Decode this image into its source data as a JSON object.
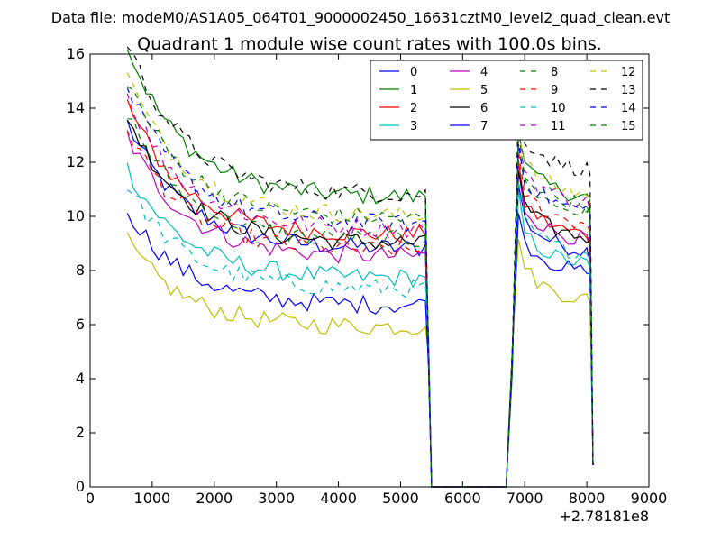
{
  "suptitle": "Data file: modeM0/AS1A05_064T01_9000002450_16631cztM0_level2_quad_clean.evt",
  "chart_data": {
    "type": "line",
    "title": "Quadrant 1 module wise count rates with 100.0s bins.",
    "xlabel": "",
    "ylabel": "",
    "x_offset_label": "+2.78181e8",
    "xlim": [
      0,
      9000
    ],
    "ylim": [
      0,
      16
    ],
    "xticks": [
      0,
      1000,
      2000,
      3000,
      4000,
      5000,
      6000,
      7000,
      8000,
      9000
    ],
    "yticks": [
      0,
      2,
      4,
      6,
      8,
      10,
      12,
      14,
      16
    ],
    "grid": false,
    "legend_placement": "top-right",
    "legend_columns": 4,
    "segment_b_times": [
      6700,
      6800,
      6900,
      7000,
      7100,
      7200,
      7300,
      7400,
      7500,
      7600,
      7700,
      7800,
      7900,
      8000,
      8050,
      8100
    ],
    "series": [
      {
        "name": "0",
        "color": "#0000ff",
        "dash": "solid",
        "base": 9.1,
        "seg_b_base": 8.8
      },
      {
        "name": "1",
        "color": "#008000",
        "dash": "solid",
        "base": 11.0,
        "seg_b_base": 10.8
      },
      {
        "name": "2",
        "color": "#ff0000",
        "dash": "solid",
        "base": 9.6,
        "seg_b_base": 9.4
      },
      {
        "name": "3",
        "color": "#00bfbf",
        "dash": "solid",
        "base": 8.0,
        "seg_b_base": 8.3
      },
      {
        "name": "4",
        "color": "#bf00bf",
        "dash": "solid",
        "base": 8.8,
        "seg_b_base": 9.2
      },
      {
        "name": "5",
        "color": "#bfbf00",
        "dash": "solid",
        "base": 6.2,
        "seg_b_base": 7.0
      },
      {
        "name": "6",
        "color": "#000000",
        "dash": "solid",
        "base": 9.3,
        "seg_b_base": 9.3
      },
      {
        "name": "7",
        "color": "#0000ff",
        "dash": "solid",
        "base": 7.0,
        "seg_b_base": 8.0
      },
      {
        "name": "8",
        "color": "#008000",
        "dash": "dashed",
        "base": 9.4,
        "seg_b_base": 10.2
      },
      {
        "name": "9",
        "color": "#ff0000",
        "dash": "dashed",
        "base": 9.0,
        "seg_b_base": 9.8
      },
      {
        "name": "10",
        "color": "#00bfbf",
        "dash": "dashed",
        "base": 7.6,
        "seg_b_base": 8.7
      },
      {
        "name": "11",
        "color": "#bf00bf",
        "dash": "dashed",
        "base": 9.8,
        "seg_b_base": 10.6
      },
      {
        "name": "12",
        "color": "#bfbf00",
        "dash": "dashed",
        "base": 10.3,
        "seg_b_base": 10.9
      },
      {
        "name": "13",
        "color": "#000000",
        "dash": "dashed",
        "base": 11.1,
        "seg_b_base": 11.8
      },
      {
        "name": "14",
        "color": "#0000ff",
        "dash": "dashed",
        "base": 10.0,
        "seg_b_base": 10.3
      },
      {
        "name": "15",
        "color": "#008000",
        "dash": "dashed",
        "base": 10.2,
        "seg_b_base": 10.5
      }
    ]
  }
}
